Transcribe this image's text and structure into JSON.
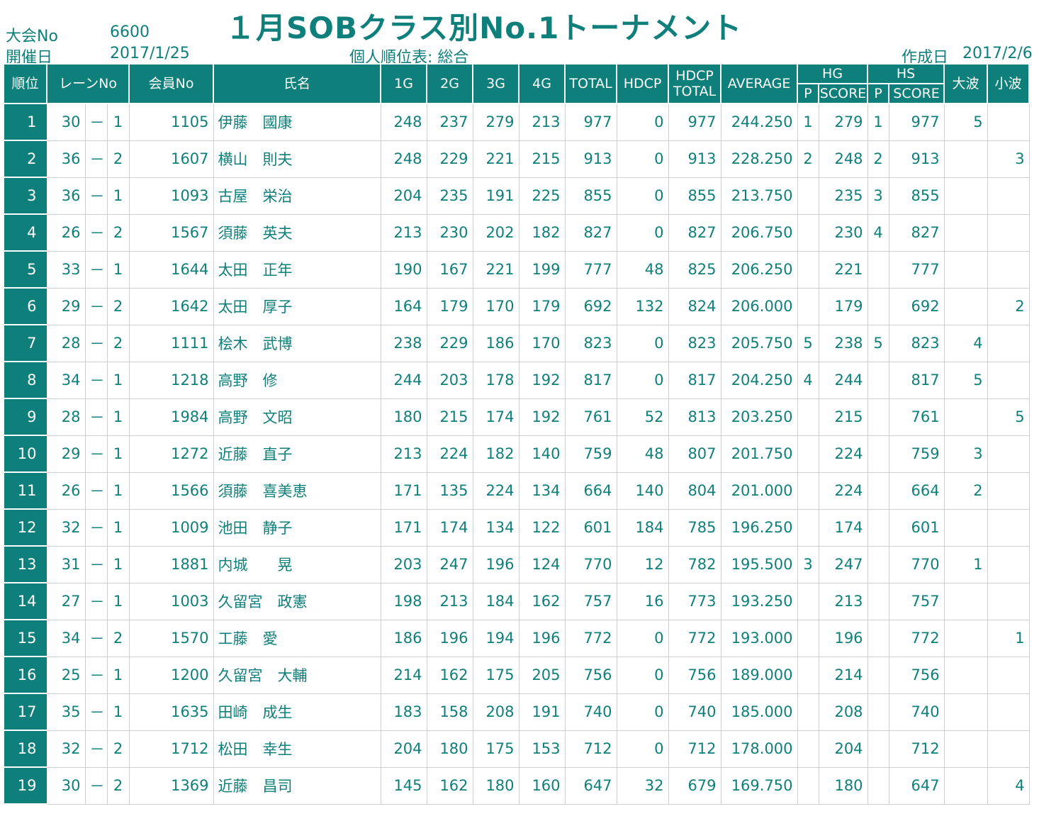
{
  "header": {
    "taikai_label": "大会No",
    "taikai_value": "6600",
    "date_label": "開催日",
    "date_value": "2017/1/25",
    "title": "１月SOBクラス別No.1トーナメント",
    "subtitle": "個人順位表: 総合",
    "created_label": "作成日",
    "created_value": "2017/2/6"
  },
  "table": {
    "headers": {
      "rank": "順位",
      "lane": "レーンNo",
      "member": "会員No",
      "name": "氏名",
      "g1": "1G",
      "g2": "2G",
      "g3": "3G",
      "g4": "4G",
      "total": "TOTAL",
      "hdcp": "HDCP",
      "hdcp_total_1": "HDCP",
      "hdcp_total_2": "TOTAL",
      "average": "AVERAGE",
      "hg": "HG",
      "hs": "HS",
      "p": "P",
      "score": "SCORE",
      "onami": "大波",
      "konami": "小波"
    },
    "rows": [
      {
        "rank": "1",
        "lane": "30",
        "dash": "－",
        "box": "1",
        "member": "1105",
        "name": "伊藤　國康",
        "g1": "248",
        "g2": "237",
        "g3": "279",
        "g4": "213",
        "total": "977",
        "hdcp": "0",
        "hdcp_total": "977",
        "avg": "244.250",
        "hg_p": "1",
        "hg_score": "279",
        "hs_p": "1",
        "hs_score": "977",
        "onami": "5",
        "konami": ""
      },
      {
        "rank": "2",
        "lane": "36",
        "dash": "－",
        "box": "2",
        "member": "1607",
        "name": "横山　則夫",
        "g1": "248",
        "g2": "229",
        "g3": "221",
        "g4": "215",
        "total": "913",
        "hdcp": "0",
        "hdcp_total": "913",
        "avg": "228.250",
        "hg_p": "2",
        "hg_score": "248",
        "hs_p": "2",
        "hs_score": "913",
        "onami": "",
        "konami": "3"
      },
      {
        "rank": "3",
        "lane": "36",
        "dash": "－",
        "box": "1",
        "member": "1093",
        "name": "古屋　栄治",
        "g1": "204",
        "g2": "235",
        "g3": "191",
        "g4": "225",
        "total": "855",
        "hdcp": "0",
        "hdcp_total": "855",
        "avg": "213.750",
        "hg_p": "",
        "hg_score": "235",
        "hs_p": "3",
        "hs_score": "855",
        "onami": "",
        "konami": ""
      },
      {
        "rank": "4",
        "lane": "26",
        "dash": "－",
        "box": "2",
        "member": "1567",
        "name": "須藤　英夫",
        "g1": "213",
        "g2": "230",
        "g3": "202",
        "g4": "182",
        "total": "827",
        "hdcp": "0",
        "hdcp_total": "827",
        "avg": "206.750",
        "hg_p": "",
        "hg_score": "230",
        "hs_p": "4",
        "hs_score": "827",
        "onami": "",
        "konami": ""
      },
      {
        "rank": "5",
        "lane": "33",
        "dash": "－",
        "box": "1",
        "member": "1644",
        "name": "太田　正年",
        "g1": "190",
        "g2": "167",
        "g3": "221",
        "g4": "199",
        "total": "777",
        "hdcp": "48",
        "hdcp_total": "825",
        "avg": "206.250",
        "hg_p": "",
        "hg_score": "221",
        "hs_p": "",
        "hs_score": "777",
        "onami": "",
        "konami": ""
      },
      {
        "rank": "6",
        "lane": "29",
        "dash": "－",
        "box": "2",
        "member": "1642",
        "name": "太田　厚子",
        "g1": "164",
        "g2": "179",
        "g3": "170",
        "g4": "179",
        "total": "692",
        "hdcp": "132",
        "hdcp_total": "824",
        "avg": "206.000",
        "hg_p": "",
        "hg_score": "179",
        "hs_p": "",
        "hs_score": "692",
        "onami": "",
        "konami": "2"
      },
      {
        "rank": "7",
        "lane": "28",
        "dash": "－",
        "box": "2",
        "member": "1111",
        "name": "桧木　武博",
        "g1": "238",
        "g2": "229",
        "g3": "186",
        "g4": "170",
        "total": "823",
        "hdcp": "0",
        "hdcp_total": "823",
        "avg": "205.750",
        "hg_p": "5",
        "hg_score": "238",
        "hs_p": "5",
        "hs_score": "823",
        "onami": "4",
        "konami": ""
      },
      {
        "rank": "8",
        "lane": "34",
        "dash": "－",
        "box": "1",
        "member": "1218",
        "name": "高野　修",
        "g1": "244",
        "g2": "203",
        "g3": "178",
        "g4": "192",
        "total": "817",
        "hdcp": "0",
        "hdcp_total": "817",
        "avg": "204.250",
        "hg_p": "4",
        "hg_score": "244",
        "hs_p": "",
        "hs_score": "817",
        "onami": "5",
        "konami": ""
      },
      {
        "rank": "9",
        "lane": "28",
        "dash": "－",
        "box": "1",
        "member": "1984",
        "name": "高野　文昭",
        "g1": "180",
        "g2": "215",
        "g3": "174",
        "g4": "192",
        "total": "761",
        "hdcp": "52",
        "hdcp_total": "813",
        "avg": "203.250",
        "hg_p": "",
        "hg_score": "215",
        "hs_p": "",
        "hs_score": "761",
        "onami": "",
        "konami": "5"
      },
      {
        "rank": "10",
        "lane": "29",
        "dash": "－",
        "box": "1",
        "member": "1272",
        "name": "近藤　直子",
        "g1": "213",
        "g2": "224",
        "g3": "182",
        "g4": "140",
        "total": "759",
        "hdcp": "48",
        "hdcp_total": "807",
        "avg": "201.750",
        "hg_p": "",
        "hg_score": "224",
        "hs_p": "",
        "hs_score": "759",
        "onami": "3",
        "konami": ""
      },
      {
        "rank": "11",
        "lane": "26",
        "dash": "－",
        "box": "1",
        "member": "1566",
        "name": "須藤　喜美恵",
        "g1": "171",
        "g2": "135",
        "g3": "224",
        "g4": "134",
        "total": "664",
        "hdcp": "140",
        "hdcp_total": "804",
        "avg": "201.000",
        "hg_p": "",
        "hg_score": "224",
        "hs_p": "",
        "hs_score": "664",
        "onami": "2",
        "konami": ""
      },
      {
        "rank": "12",
        "lane": "32",
        "dash": "－",
        "box": "1",
        "member": "1009",
        "name": "池田　静子",
        "g1": "171",
        "g2": "174",
        "g3": "134",
        "g4": "122",
        "total": "601",
        "hdcp": "184",
        "hdcp_total": "785",
        "avg": "196.250",
        "hg_p": "",
        "hg_score": "174",
        "hs_p": "",
        "hs_score": "601",
        "onami": "",
        "konami": ""
      },
      {
        "rank": "13",
        "lane": "31",
        "dash": "－",
        "box": "1",
        "member": "1881",
        "name": "内城　　晃",
        "g1": "203",
        "g2": "247",
        "g3": "196",
        "g4": "124",
        "total": "770",
        "hdcp": "12",
        "hdcp_total": "782",
        "avg": "195.500",
        "hg_p": "3",
        "hg_score": "247",
        "hs_p": "",
        "hs_score": "770",
        "onami": "1",
        "konami": ""
      },
      {
        "rank": "14",
        "lane": "27",
        "dash": "－",
        "box": "1",
        "member": "1003",
        "name": "久留宮　政憲",
        "g1": "198",
        "g2": "213",
        "g3": "184",
        "g4": "162",
        "total": "757",
        "hdcp": "16",
        "hdcp_total": "773",
        "avg": "193.250",
        "hg_p": "",
        "hg_score": "213",
        "hs_p": "",
        "hs_score": "757",
        "onami": "",
        "konami": ""
      },
      {
        "rank": "15",
        "lane": "34",
        "dash": "－",
        "box": "2",
        "member": "1570",
        "name": "工藤　愛",
        "g1": "186",
        "g2": "196",
        "g3": "194",
        "g4": "196",
        "total": "772",
        "hdcp": "0",
        "hdcp_total": "772",
        "avg": "193.000",
        "hg_p": "",
        "hg_score": "196",
        "hs_p": "",
        "hs_score": "772",
        "onami": "",
        "konami": "1"
      },
      {
        "rank": "16",
        "lane": "25",
        "dash": "－",
        "box": "1",
        "member": "1200",
        "name": "久留宮　大輔",
        "g1": "214",
        "g2": "162",
        "g3": "175",
        "g4": "205",
        "total": "756",
        "hdcp": "0",
        "hdcp_total": "756",
        "avg": "189.000",
        "hg_p": "",
        "hg_score": "214",
        "hs_p": "",
        "hs_score": "756",
        "onami": "",
        "konami": ""
      },
      {
        "rank": "17",
        "lane": "35",
        "dash": "－",
        "box": "1",
        "member": "1635",
        "name": "田崎　成生",
        "g1": "183",
        "g2": "158",
        "g3": "208",
        "g4": "191",
        "total": "740",
        "hdcp": "0",
        "hdcp_total": "740",
        "avg": "185.000",
        "hg_p": "",
        "hg_score": "208",
        "hs_p": "",
        "hs_score": "740",
        "onami": "",
        "konami": ""
      },
      {
        "rank": "18",
        "lane": "32",
        "dash": "－",
        "box": "2",
        "member": "1712",
        "name": "松田　幸生",
        "g1": "204",
        "g2": "180",
        "g3": "175",
        "g4": "153",
        "total": "712",
        "hdcp": "0",
        "hdcp_total": "712",
        "avg": "178.000",
        "hg_p": "",
        "hg_score": "204",
        "hs_p": "",
        "hs_score": "712",
        "onami": "",
        "konami": ""
      },
      {
        "rank": "19",
        "lane": "30",
        "dash": "－",
        "box": "2",
        "member": "1369",
        "name": "近藤　昌司",
        "g1": "145",
        "g2": "162",
        "g3": "180",
        "g4": "160",
        "total": "647",
        "hdcp": "32",
        "hdcp_total": "679",
        "avg": "169.750",
        "hg_p": "",
        "hg_score": "180",
        "hs_p": "",
        "hs_score": "647",
        "onami": "",
        "konami": "4"
      }
    ]
  }
}
